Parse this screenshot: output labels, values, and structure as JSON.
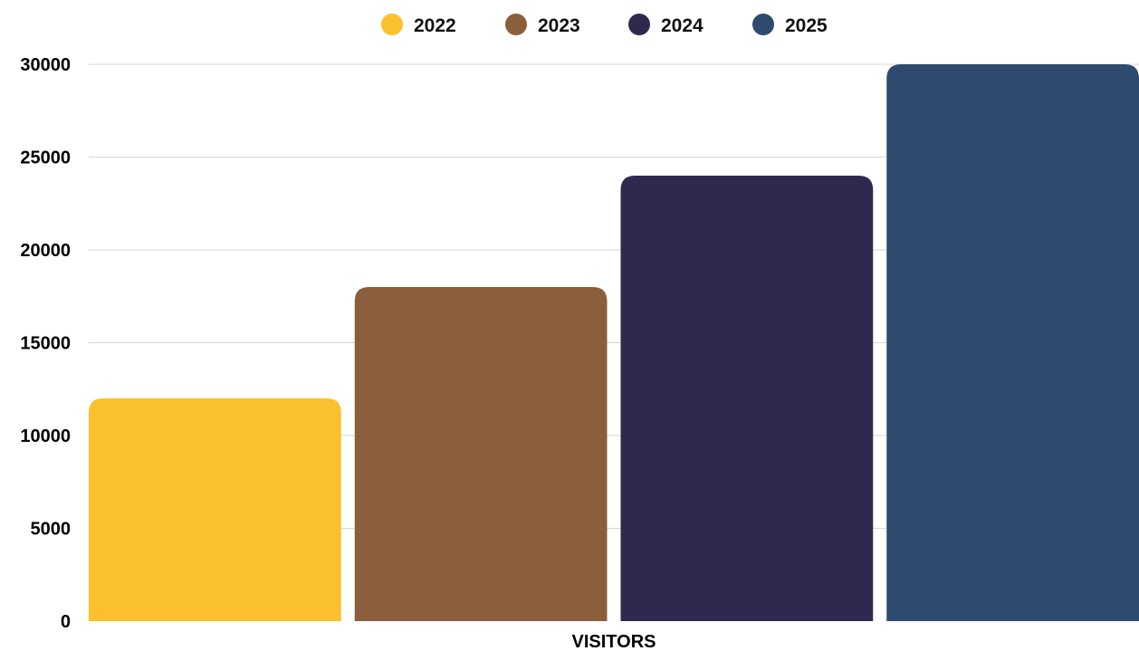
{
  "chart_data": {
    "type": "bar",
    "categories": [
      "VISITORS"
    ],
    "series": [
      {
        "name": "2022",
        "values": [
          12000
        ],
        "color": "#FBC02D"
      },
      {
        "name": "2023",
        "values": [
          18000
        ],
        "color": "#8B5E3C"
      },
      {
        "name": "2024",
        "values": [
          24000
        ],
        "color": "#31284F"
      },
      {
        "name": "2025",
        "values": [
          30000
        ],
        "color": "#2E4A6E"
      }
    ],
    "title": "",
    "xlabel": "VISITORS",
    "ylabel": "",
    "ylim": [
      0,
      30000
    ],
    "yticks": [
      0,
      5000,
      10000,
      15000,
      20000,
      25000,
      30000
    ],
    "grid": true,
    "legend_position": "top-center"
  }
}
